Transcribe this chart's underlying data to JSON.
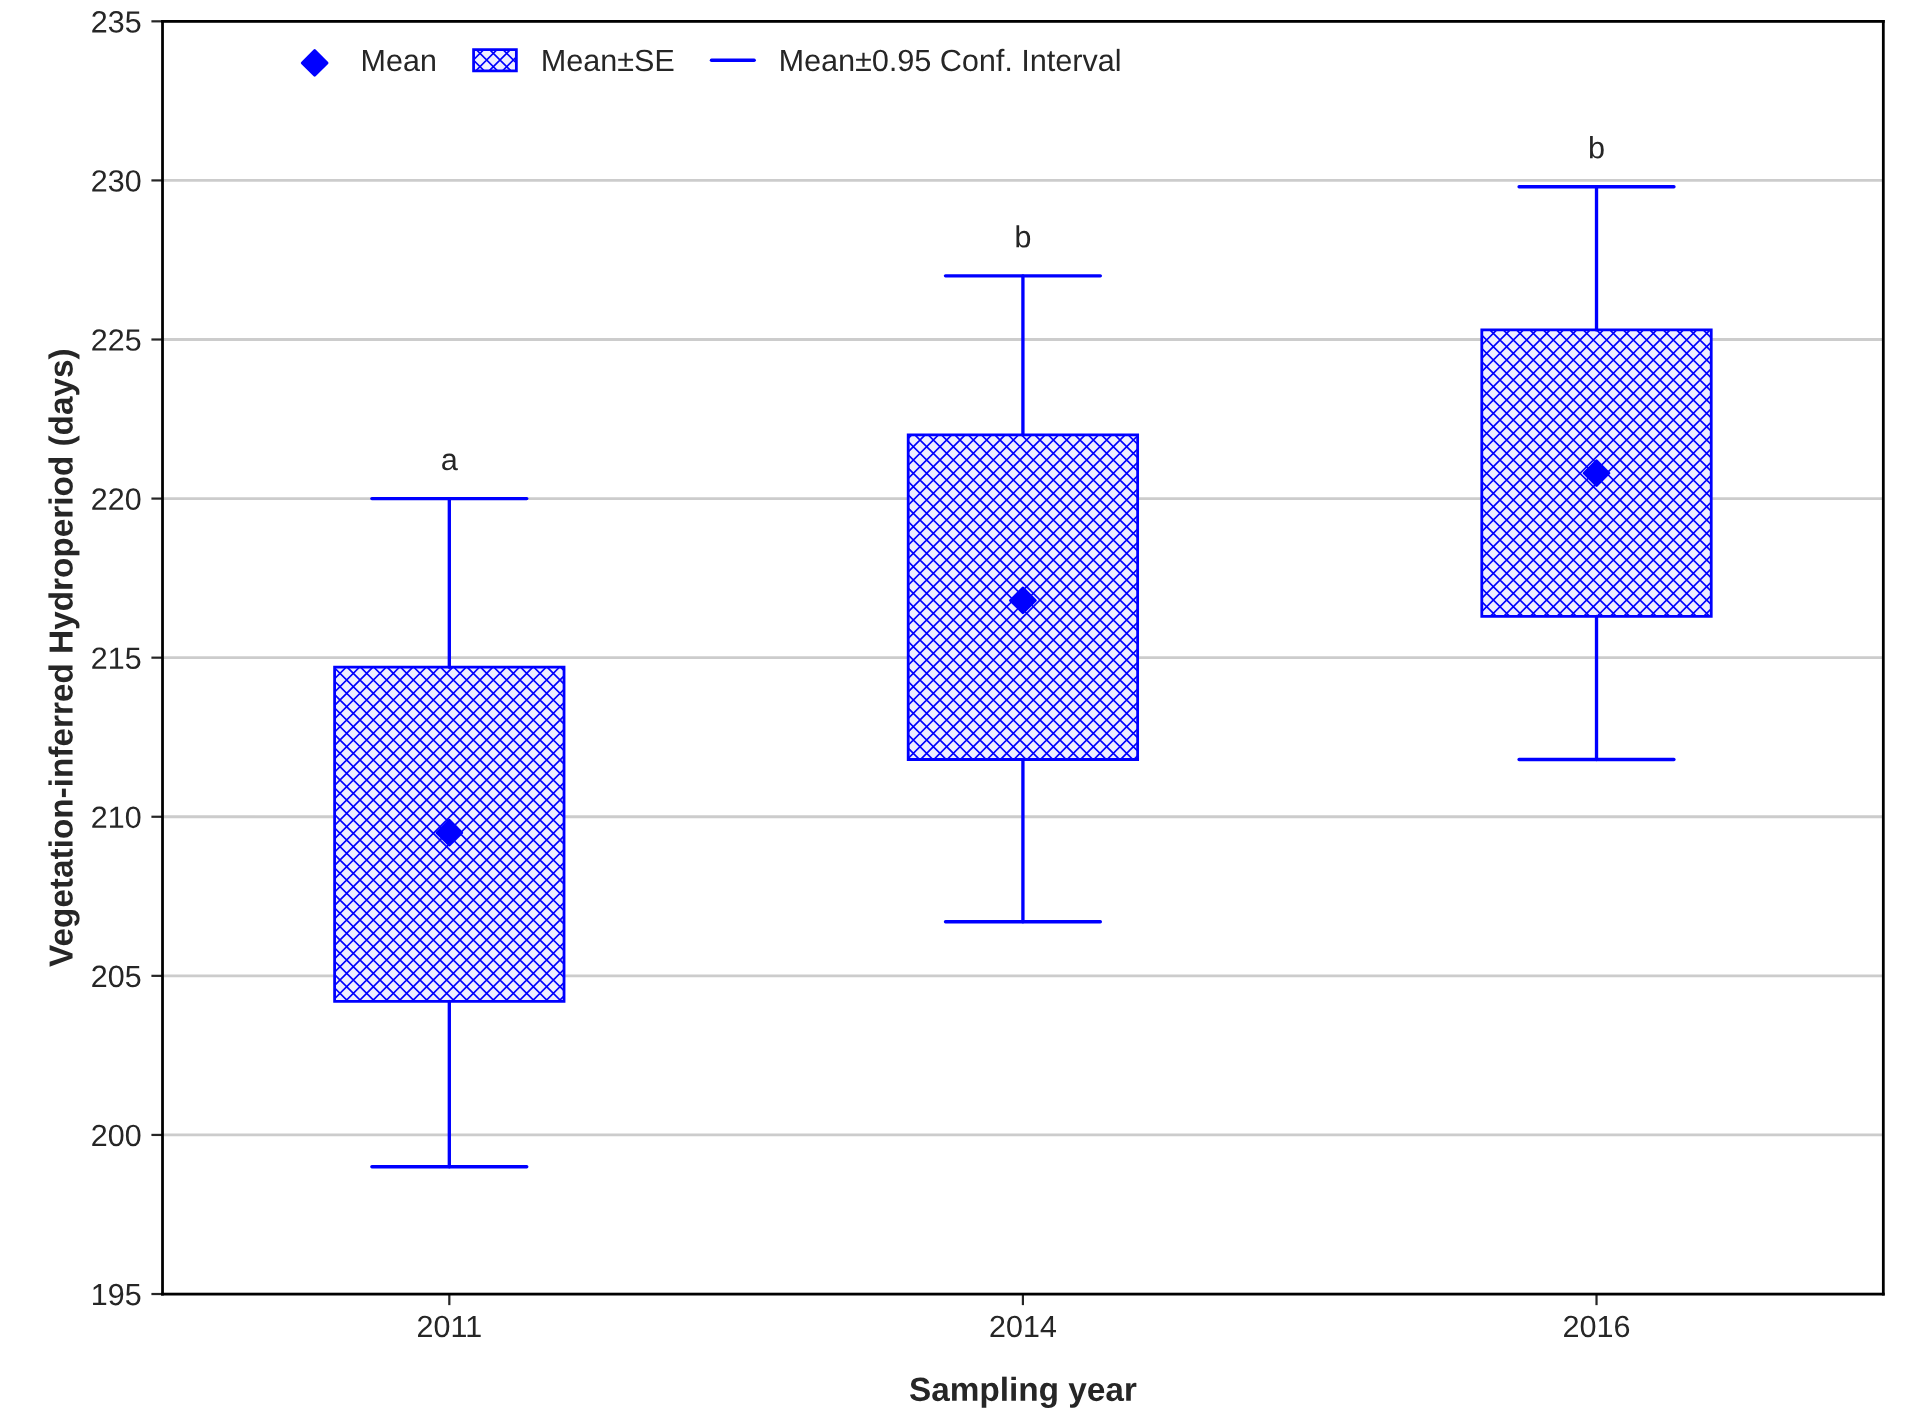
{
  "chart_data": {
    "type": "box",
    "xlabel": "Sampling year",
    "ylabel": "Vegetation-inferred Hydroperiod (days)",
    "categories": [
      "2011",
      "2014",
      "2016"
    ],
    "series": [
      {
        "name": "Mean",
        "type": "scatter",
        "marker": "diamond",
        "color": "#0000ff",
        "values": [
          209.5,
          216.8,
          220.8
        ]
      },
      {
        "name": "Mean±SE",
        "color": "#0000ff",
        "boxes": [
          {
            "low": 199.0,
            "q1": 204.2,
            "q3": 214.7,
            "high": 220.0
          },
          {
            "low": 206.7,
            "q1": 211.8,
            "q3": 222.0,
            "high": 227.0
          },
          {
            "low": 211.8,
            "q1": 216.3,
            "q3": 225.3,
            "high": 229.8
          }
        ]
      }
    ],
    "annotations": [
      "Mean±0.95 Conf. Interval",
      "a",
      "b",
      "b"
    ],
    "ylim": [
      195,
      235
    ],
    "yticks": [
      195,
      200,
      205,
      210,
      215,
      220,
      225,
      230,
      235
    ],
    "grid": "y",
    "legend": "top left"
  }
}
